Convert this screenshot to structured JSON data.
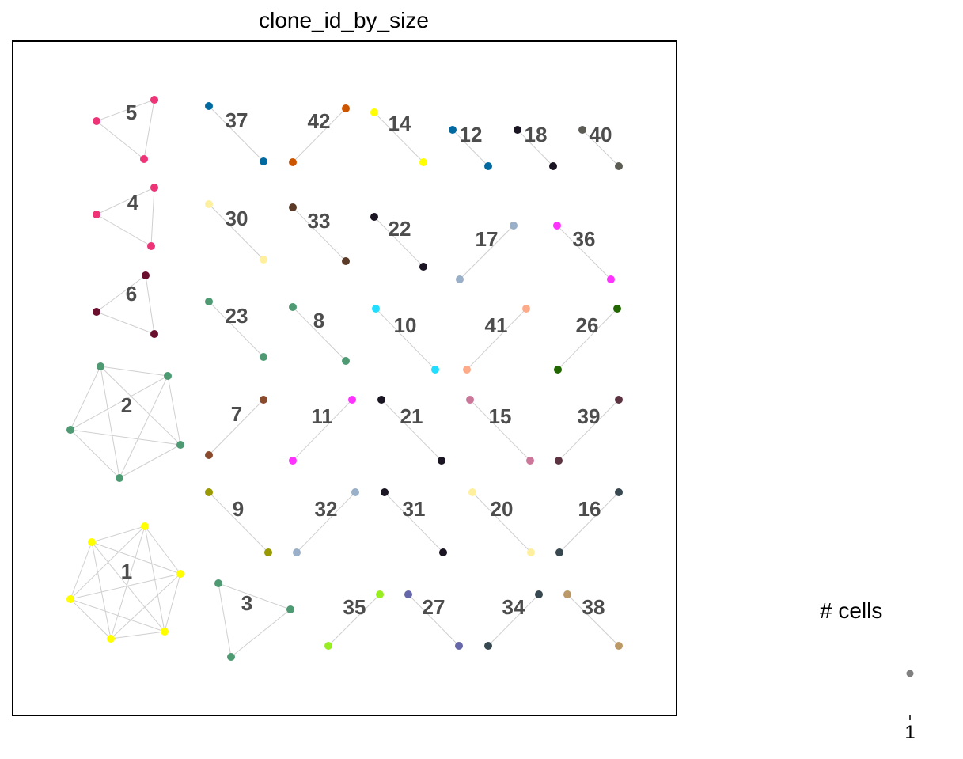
{
  "chart_data": {
    "type": "network",
    "title": "clone_id_by_size",
    "legend": {
      "title": "# cells",
      "size_values": [
        1
      ]
    },
    "colors": {
      "edge": "#cfcfcf",
      "label": "#4d4d4d",
      "legend_dot": "#808080"
    },
    "clones": [
      {
        "label": "1",
        "color": "#ffff00",
        "size": 6
      },
      {
        "label": "2",
        "color": "#4e9a72",
        "size": 5
      },
      {
        "label": "3",
        "color": "#4e9a72",
        "size": 3
      },
      {
        "label": "4",
        "color": "#ee3377",
        "size": 3
      },
      {
        "label": "5",
        "color": "#ee3377",
        "size": 3
      },
      {
        "label": "6",
        "color": "#6b0f2e",
        "size": 3
      },
      {
        "label": "37",
        "color": "#0069a0",
        "size": 2
      },
      {
        "label": "42",
        "color": "#cc5500",
        "size": 2
      },
      {
        "label": "14",
        "color": "#ffff00",
        "size": 2
      },
      {
        "label": "12",
        "color": "#0069a0",
        "size": 2
      },
      {
        "label": "18",
        "color": "#1a1423",
        "size": 2
      },
      {
        "label": "40",
        "color": "#5c5c54",
        "size": 2
      },
      {
        "label": "30",
        "color": "#fff0a0",
        "size": 2
      },
      {
        "label": "33",
        "color": "#5c3a28",
        "size": 2
      },
      {
        "label": "22",
        "color": "#1a1423",
        "size": 2
      },
      {
        "label": "17",
        "color": "#9ab0c8",
        "size": 2
      },
      {
        "label": "36",
        "color": "#ff33ff",
        "size": 2
      },
      {
        "label": "23",
        "color": "#4e9a72",
        "size": 2
      },
      {
        "label": "8",
        "color": "#4e9a72",
        "size": 2
      },
      {
        "label": "10",
        "color": "#22ddff",
        "size": 2
      },
      {
        "label": "41",
        "color": "#ffaa88",
        "size": 2
      },
      {
        "label": "26",
        "color": "#226600",
        "size": 2
      },
      {
        "label": "7",
        "color": "#8b4a2b",
        "size": 2
      },
      {
        "label": "11",
        "color": "#ff33ff",
        "size": 2
      },
      {
        "label": "21",
        "color": "#1a1423",
        "size": 2
      },
      {
        "label": "15",
        "color": "#cc7799",
        "size": 2
      },
      {
        "label": "39",
        "color": "#5c3340",
        "size": 2
      },
      {
        "label": "9",
        "color": "#999900",
        "size": 2
      },
      {
        "label": "32",
        "color": "#9ab0c8",
        "size": 2
      },
      {
        "label": "31",
        "color": "#1a1423",
        "size": 2
      },
      {
        "label": "20",
        "color": "#fff0a0",
        "size": 2
      },
      {
        "label": "16",
        "color": "#384850",
        "size": 2
      },
      {
        "label": "35",
        "color": "#99ee22",
        "size": 2
      },
      {
        "label": "27",
        "color": "#6666aa",
        "size": 2
      },
      {
        "label": "34",
        "color": "#384850",
        "size": 2
      },
      {
        "label": "38",
        "color": "#bb9966",
        "size": 2
      }
    ]
  }
}
